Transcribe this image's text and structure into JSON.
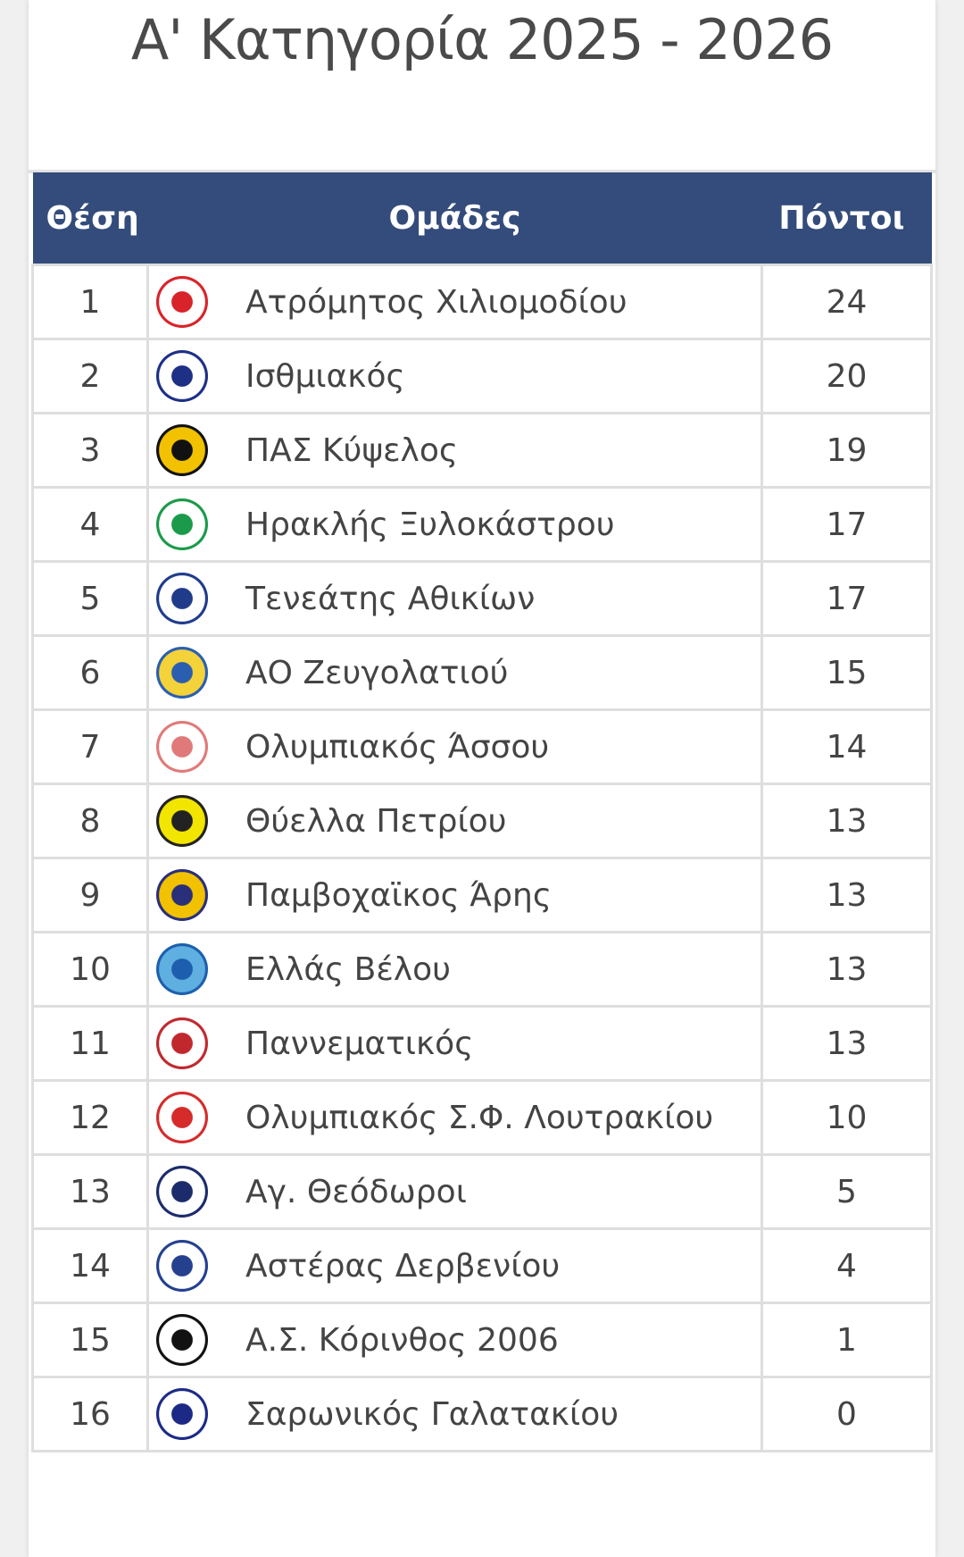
{
  "title": "Α' Κατηγορία 2025 - 2026",
  "table": {
    "headers": {
      "position": "Θέση",
      "team": "Ομάδες",
      "points": "Πόντοι"
    },
    "header_color": "#344c7b",
    "rows": [
      {
        "pos": "1",
        "team": "Ατρόμητος Χιλιομοδίου",
        "points": "24",
        "logo_color": "#d8232a",
        "logo_bg": "#ffffff"
      },
      {
        "pos": "2",
        "team": "Ισθμιακός",
        "points": "20",
        "logo_color": "#1e2f86",
        "logo_bg": "#ffffff"
      },
      {
        "pos": "3",
        "team": "ΠΑΣ Κύψελος",
        "points": "19",
        "logo_color": "#111111",
        "logo_bg": "#f2c200"
      },
      {
        "pos": "4",
        "team": "Ηρακλής Ξυλοκάστρου",
        "points": "17",
        "logo_color": "#1a9a4a",
        "logo_bg": "#ffffff"
      },
      {
        "pos": "5",
        "team": "Τενεάτης Αθικίων",
        "points": "17",
        "logo_color": "#1f3b8a",
        "logo_bg": "#ffffff"
      },
      {
        "pos": "6",
        "team": "ΑΟ Ζευγολατιού",
        "points": "15",
        "logo_color": "#2a5fb0",
        "logo_bg": "#f4d23a"
      },
      {
        "pos": "7",
        "team": "Ολυμπιακός Άσσου",
        "points": "14",
        "logo_color": "#e07a7a",
        "logo_bg": "#ffffff"
      },
      {
        "pos": "8",
        "team": "Θύελλα Πετρίου",
        "points": "13",
        "logo_color": "#222222",
        "logo_bg": "#f2e600"
      },
      {
        "pos": "9",
        "team": "Παμβοχαϊκος Άρης",
        "points": "13",
        "logo_color": "#2a2f7a",
        "logo_bg": "#f2c200"
      },
      {
        "pos": "10",
        "team": "Ελλάς Βέλου",
        "points": "13",
        "logo_color": "#1d5fae",
        "logo_bg": "#5fb0e0"
      },
      {
        "pos": "11",
        "team": "Παννεματικός",
        "points": "13",
        "logo_color": "#c0282e",
        "logo_bg": "#ffffff"
      },
      {
        "pos": "12",
        "team": "Ολυμπιακός Σ.Φ. Λουτρακίου",
        "points": "10",
        "logo_color": "#d52b2b",
        "logo_bg": "#ffffff"
      },
      {
        "pos": "13",
        "team": "Αγ. Θεόδωροι",
        "points": "5",
        "logo_color": "#1c2b6b",
        "logo_bg": "#ffffff"
      },
      {
        "pos": "14",
        "team": "Αστέρας Δερβενίου",
        "points": "4",
        "logo_color": "#24408e",
        "logo_bg": "#ffffff"
      },
      {
        "pos": "15",
        "team": "Α.Σ. Κόρινθος 2006",
        "points": "1",
        "logo_color": "#111111",
        "logo_bg": "#ffffff"
      },
      {
        "pos": "16",
        "team": "Σαρωνικός Γαλατακίου",
        "points": "0",
        "logo_color": "#1c2a86",
        "logo_bg": "#ffffff"
      }
    ]
  }
}
